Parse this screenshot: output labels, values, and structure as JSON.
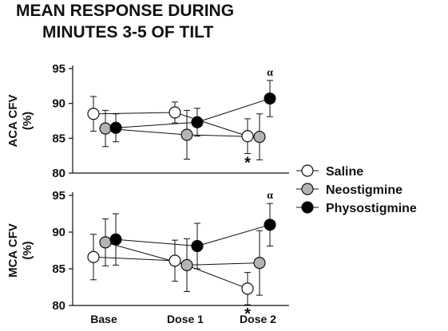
{
  "title_lines": [
    "MEAN RESPONSE DURING",
    "MINUTES 3-5 OF TILT"
  ],
  "chart_data": {
    "type": "line",
    "categories": [
      "Base",
      "Dose 1",
      "Dose 2"
    ],
    "series_styles": [
      {
        "name": "Saline",
        "fill": "#ffffff"
      },
      {
        "name": "Neostigmine",
        "fill": "#b4b4b4"
      },
      {
        "name": "Physostigmine",
        "fill": "#000000"
      }
    ],
    "panels": [
      {
        "ylabel_lines": [
          "ACA CFV",
          "(%)"
        ],
        "ylim": [
          80,
          95
        ],
        "yticks": [
          80,
          85,
          90,
          95
        ],
        "series": [
          {
            "name": "Saline",
            "values": [
              88.5,
              88.7,
              85.3
            ],
            "errors": [
              2.5,
              1.5,
              2.5
            ]
          },
          {
            "name": "Neostigmine",
            "values": [
              86.4,
              85.5,
              85.2
            ],
            "errors": [
              2.6,
              3.5,
              3.3
            ]
          },
          {
            "name": "Physostigmine",
            "values": [
              86.5,
              87.3,
              90.7
            ],
            "errors": [
              2.0,
              2.0,
              2.6
            ]
          }
        ],
        "annotations": [
          {
            "category": "Dose 2",
            "series": "Saline",
            "text": "*",
            "position": "below"
          },
          {
            "category": "Dose 2",
            "series": "Physostigmine",
            "text": "α",
            "position": "above"
          }
        ]
      },
      {
        "ylabel_lines": [
          "MCA CFV",
          "(%)"
        ],
        "ylim": [
          80,
          95
        ],
        "yticks": [
          80,
          85,
          90,
          95
        ],
        "series": [
          {
            "name": "Saline",
            "values": [
              86.6,
              86.1,
              82.3
            ],
            "errors": [
              3.1,
              2.8,
              2.2
            ]
          },
          {
            "name": "Neostigmine",
            "values": [
              88.6,
              85.5,
              85.8
            ],
            "errors": [
              3.2,
              3.6,
              4.4
            ]
          },
          {
            "name": "Physostigmine",
            "values": [
              89.0,
              88.1,
              91.0
            ],
            "errors": [
              3.5,
              3.1,
              2.9
            ]
          }
        ],
        "annotations": [
          {
            "category": "Dose 2",
            "series": "Saline",
            "text": "*",
            "position": "below"
          },
          {
            "category": "Dose 2",
            "series": "Physostigmine",
            "text": "α",
            "position": "above"
          }
        ]
      }
    ],
    "legend": {
      "placement": "right",
      "entries": [
        "Saline",
        "Neostigmine",
        "Physostigmine"
      ]
    },
    "grid": false
  }
}
